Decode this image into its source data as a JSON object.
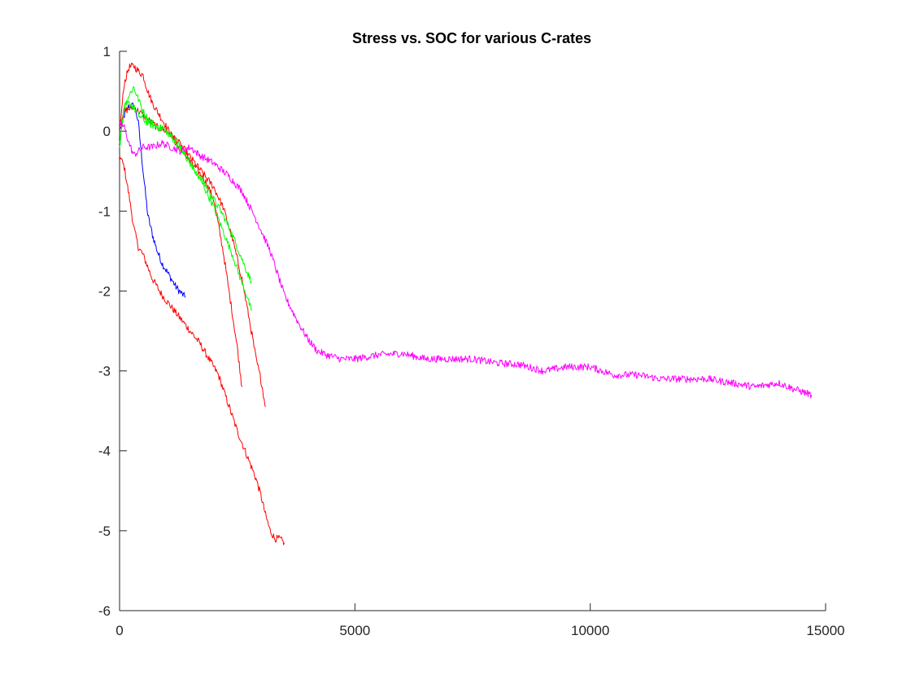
{
  "chart_data": {
    "type": "line",
    "title": "Stress vs. SOC for various C-rates",
    "xlabel": "",
    "ylabel": "",
    "xlim": [
      0,
      15000
    ],
    "ylim": [
      -6,
      1
    ],
    "xticks": [
      0,
      5000,
      10000,
      15000
    ],
    "yticks": [
      -6,
      -5,
      -4,
      -3,
      -2,
      -1,
      0,
      1
    ],
    "xtick_labels": [
      "0",
      "5000",
      "10000",
      "15000"
    ],
    "ytick_labels": [
      "-6",
      "-5",
      "-4",
      "-3",
      "-2",
      "-1",
      "0",
      "1"
    ],
    "grid": false,
    "legend": "none",
    "series": [
      {
        "color": "#0000ff",
        "x": [
          0,
          100,
          200,
          300,
          350,
          400,
          500,
          600,
          700,
          800,
          900,
          1000,
          1100,
          1200,
          1300,
          1400
        ],
        "y": [
          0.0,
          0.2,
          0.32,
          0.32,
          0.25,
          0.1,
          -0.5,
          -1.05,
          -1.3,
          -1.5,
          -1.65,
          -1.75,
          -1.85,
          -1.95,
          -2.02,
          -2.08
        ]
      },
      {
        "color": "#ff0000",
        "x": [
          0,
          100,
          200,
          300,
          400,
          500,
          700,
          900,
          1100,
          1300,
          1500,
          1700,
          1900,
          2100,
          2300,
          2500,
          2700,
          2900,
          3000,
          3100,
          3200,
          3300,
          3400,
          3500
        ],
        "y": [
          -0.3,
          -0.45,
          -0.8,
          -1.2,
          -1.45,
          -1.55,
          -1.85,
          -2.05,
          -2.2,
          -2.35,
          -2.5,
          -2.65,
          -2.85,
          -3.05,
          -3.4,
          -3.75,
          -4.05,
          -4.35,
          -4.55,
          -4.8,
          -5.0,
          -5.1,
          -5.1,
          -5.15
        ]
      },
      {
        "color": "#ff0000",
        "x": [
          0,
          100,
          200,
          300,
          400,
          500,
          600,
          700,
          800,
          900,
          1000,
          1200,
          1400,
          1600,
          1800,
          2000,
          2200,
          2400,
          2500,
          2600
        ],
        "y": [
          0.0,
          0.6,
          0.8,
          0.82,
          0.75,
          0.7,
          0.5,
          0.35,
          0.25,
          0.15,
          0.05,
          -0.15,
          -0.3,
          -0.45,
          -0.6,
          -0.85,
          -1.5,
          -2.3,
          -2.7,
          -3.2
        ]
      },
      {
        "color": "#ff0000",
        "x": [
          0,
          100,
          200,
          300,
          400,
          600,
          800,
          1000,
          1200,
          1400,
          1600,
          1800,
          2000,
          2200,
          2400,
          2600,
          2800,
          2900,
          3000,
          3100
        ],
        "y": [
          0.1,
          0.25,
          0.28,
          0.3,
          0.25,
          0.15,
          0.05,
          0.0,
          -0.1,
          -0.25,
          -0.4,
          -0.55,
          -0.7,
          -0.95,
          -1.35,
          -1.85,
          -2.5,
          -2.85,
          -3.1,
          -3.45
        ]
      },
      {
        "color": "#00ff00",
        "x": [
          0,
          100,
          200,
          300,
          400,
          500,
          600,
          700,
          800,
          900,
          1000,
          1200,
          1400,
          1600,
          1800,
          2000,
          2200,
          2400,
          2600,
          2700,
          2800
        ],
        "y": [
          -0.15,
          0.3,
          0.45,
          0.55,
          0.4,
          0.25,
          0.15,
          0.1,
          0.05,
          0.05,
          0.0,
          -0.1,
          -0.3,
          -0.5,
          -0.65,
          -0.85,
          -1.05,
          -1.3,
          -1.6,
          -1.75,
          -1.88
        ]
      },
      {
        "color": "#00ff00",
        "x": [
          0,
          100,
          200,
          300,
          400,
          500,
          600,
          800,
          1000,
          1200,
          1400,
          1600,
          1800,
          2000,
          2200,
          2400,
          2600,
          2700,
          2800
        ],
        "y": [
          -0.2,
          0.3,
          0.35,
          0.3,
          0.2,
          0.15,
          0.1,
          0.05,
          0.0,
          -0.15,
          -0.3,
          -0.5,
          -0.7,
          -0.95,
          -1.25,
          -1.55,
          -1.9,
          -2.05,
          -2.25
        ]
      },
      {
        "color": "#ff00ff",
        "x": [
          0,
          100,
          200,
          300,
          400,
          500,
          700,
          900,
          1100,
          1300,
          1500,
          1700,
          2000,
          2300,
          2600,
          2900,
          3200,
          3500,
          3800,
          4000,
          4200,
          4400,
          4700,
          5000,
          5500,
          6000,
          6500,
          7000,
          7500,
          8000,
          8500,
          9000,
          9500,
          10000,
          10500,
          11000,
          11500,
          12000,
          12500,
          13000,
          13500,
          14000,
          14300,
          14700
        ],
        "y": [
          0.1,
          0.05,
          -0.15,
          -0.3,
          -0.25,
          -0.2,
          -0.2,
          -0.15,
          -0.2,
          -0.25,
          -0.2,
          -0.3,
          -0.4,
          -0.55,
          -0.75,
          -1.1,
          -1.5,
          -2.05,
          -2.4,
          -2.6,
          -2.75,
          -2.8,
          -2.85,
          -2.85,
          -2.8,
          -2.78,
          -2.85,
          -2.85,
          -2.85,
          -2.9,
          -2.92,
          -3.0,
          -2.95,
          -2.95,
          -3.05,
          -3.05,
          -3.1,
          -3.1,
          -3.1,
          -3.15,
          -3.2,
          -3.15,
          -3.22,
          -3.3
        ]
      }
    ]
  }
}
